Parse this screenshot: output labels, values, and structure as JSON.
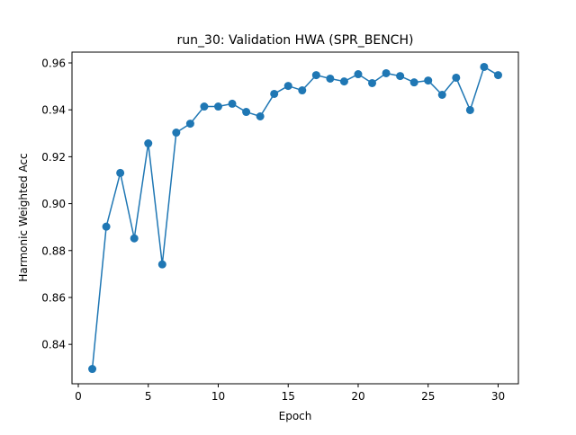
{
  "chart_data": {
    "type": "line",
    "title": "run_30: Validation HWA (SPR_BENCH)",
    "xlabel": "Epoch",
    "ylabel": "Harmonic Weighted Acc",
    "xlim": [
      -0.45,
      31.45
    ],
    "ylim": [
      0.8232,
      0.9646
    ],
    "xticks": [
      0,
      5,
      10,
      15,
      20,
      25,
      30
    ],
    "xtick_labels": [
      "0",
      "5",
      "10",
      "15",
      "20",
      "25",
      "30"
    ],
    "yticks": [
      0.84,
      0.86,
      0.88,
      0.9,
      0.92,
      0.94,
      0.96
    ],
    "ytick_labels": [
      "0.84",
      "0.86",
      "0.88",
      "0.90",
      "0.92",
      "0.94",
      "0.96"
    ],
    "grid": false,
    "legend": "none",
    "series": [
      {
        "color": "#1f77b4",
        "marker": "circle",
        "x": [
          1,
          2,
          3,
          4,
          5,
          6,
          7,
          8,
          9,
          10,
          11,
          12,
          13,
          14,
          15,
          16,
          17,
          18,
          19,
          20,
          21,
          22,
          23,
          24,
          25,
          26,
          27,
          28,
          29,
          30
        ],
        "y": [
          0.8295,
          0.8902,
          0.9131,
          0.8852,
          0.9257,
          0.8741,
          0.9303,
          0.9341,
          0.9414,
          0.9414,
          0.9426,
          0.9391,
          0.9372,
          0.9468,
          0.9502,
          0.9483,
          0.9548,
          0.9533,
          0.9521,
          0.9552,
          0.9514,
          0.9556,
          0.9544,
          0.9517,
          0.9525,
          0.9464,
          0.9537,
          0.9399,
          0.9583,
          0.9548
        ]
      }
    ]
  }
}
